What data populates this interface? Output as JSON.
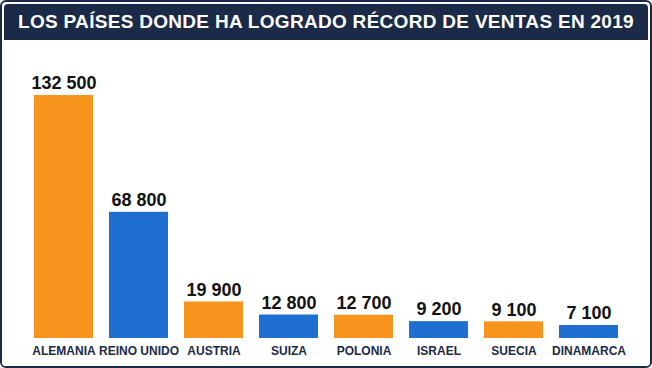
{
  "chart_data": {
    "type": "bar",
    "title": "LOS PAÍSES DONDE HA LOGRADO RÉCORD DE VENTAS EN 2019",
    "categories": [
      "ALEMANIA",
      "REINO UNIDO",
      "AUSTRIA",
      "SUIZA",
      "POLONIA",
      "ISRAEL",
      "SUECIA",
      "DINAMARCA"
    ],
    "values": [
      132500,
      68800,
      19900,
      12800,
      12700,
      9200,
      9100,
      7100
    ],
    "value_labels": [
      "132 500",
      "68 800",
      "19 900",
      "12 800",
      "12 700",
      "9 200",
      "9 100",
      "7 100"
    ],
    "colors": [
      "#f7941d",
      "#1f6fd1",
      "#f7941d",
      "#1f6fd1",
      "#f7941d",
      "#1f6fd1",
      "#f7941d",
      "#1f6fd1"
    ],
    "ylim": [
      0,
      132500
    ],
    "data_labels": true,
    "tick_labels": "x"
  }
}
